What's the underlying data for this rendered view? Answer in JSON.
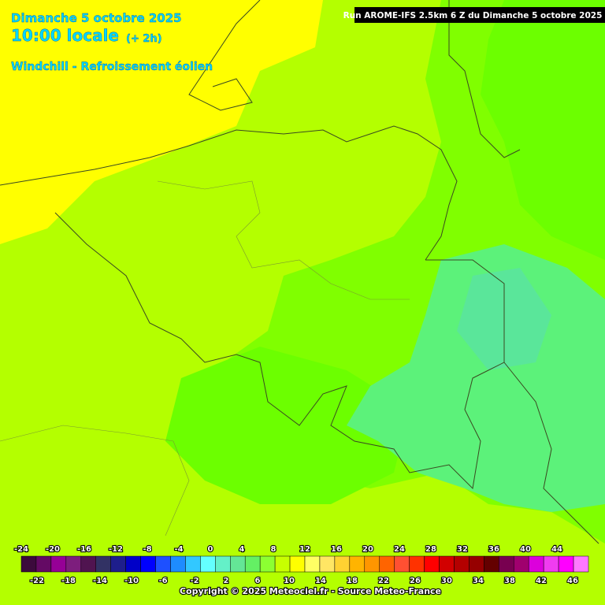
{
  "header": {
    "date": "Dimanche 5 octobre 2025",
    "time": "10:00 locale",
    "offset": "(+ 2h)",
    "parameter": "Windchill - Refroissement éolien",
    "run": "Run AROME-IFS 2.5km 6 Z du Dimanche 5 octobre 2025"
  },
  "legend": {
    "top_labels": [
      -24,
      -20,
      -16,
      -12,
      -8,
      -4,
      0,
      4,
      8,
      12,
      16,
      20,
      24,
      28,
      32,
      36,
      40,
      44
    ],
    "bottom_labels": [
      -22,
      -18,
      -14,
      -10,
      -6,
      -2,
      2,
      6,
      10,
      14,
      18,
      22,
      26,
      30,
      34,
      38,
      42,
      46
    ],
    "min": -24,
    "max": 48,
    "colors": [
      "#3c0a3c",
      "#640a64",
      "#960096",
      "#7d1e7d",
      "#501450",
      "#323264",
      "#1e1e8c",
      "#0000c8",
      "#0000ff",
      "#1e50ff",
      "#1e8cff",
      "#32c8ff",
      "#64ffff",
      "#64f0c8",
      "#64e696",
      "#64f064",
      "#8cff32",
      "#c8ff00",
      "#ffff00",
      "#ffff64",
      "#ffe664",
      "#ffd232",
      "#ffb400",
      "#ff9600",
      "#ff6400",
      "#ff5032",
      "#ff3200",
      "#ff0000",
      "#d20000",
      "#b40000",
      "#960000",
      "#640000",
      "#780050",
      "#a0006e",
      "#dc00dc",
      "#f03cf0",
      "#ff00ff",
      "#ff78ff"
    ]
  },
  "footer": {
    "copyright": "Copyright © 2025 Meteociel.fr - Source Meteo-France"
  }
}
